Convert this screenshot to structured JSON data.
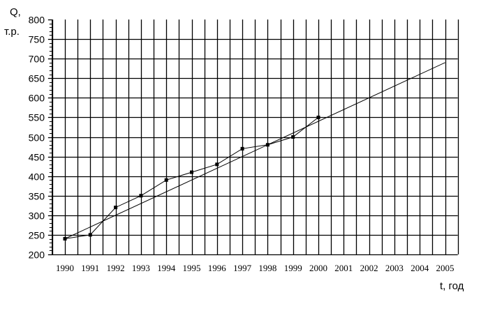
{
  "chart_data": {
    "type": "line",
    "title": "",
    "ylabel_line1": "Q,",
    "ylabel_line2": "т.р.",
    "xlabel": "t, год",
    "ylim": [
      200,
      800
    ],
    "xlim": [
      1990,
      2005
    ],
    "y_ticks": [
      200,
      250,
      300,
      350,
      400,
      450,
      500,
      550,
      600,
      650,
      700,
      750,
      800
    ],
    "x_ticks": [
      "1990",
      "1991",
      "1992",
      "1993",
      "1994",
      "1995",
      "1996",
      "1997",
      "1998",
      "1999",
      "2000",
      "2001",
      "2002",
      "2003",
      "2004",
      "2005"
    ],
    "grid": true,
    "series": [
      {
        "x": [
          1990,
          1991,
          1992,
          1993,
          1994,
          1995,
          1996,
          1997,
          1998,
          1999,
          2000
        ],
        "y": [
          240,
          250,
          320,
          350,
          390,
          410,
          430,
          470,
          480,
          500,
          550
        ],
        "markers": true
      },
      {
        "x": [
          1990,
          2005
        ],
        "y": [
          240,
          690
        ],
        "markers": false
      }
    ],
    "color": "#000000"
  }
}
